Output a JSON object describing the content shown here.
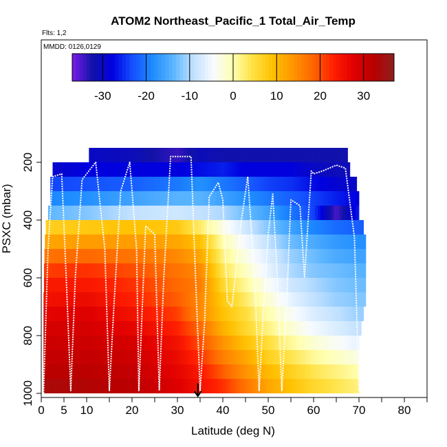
{
  "chart_data": {
    "type": "heatmap",
    "title": "ATOM2 Northeast_Pacific_1 Total_Air_Temp",
    "flights_note": "Flts: 1,2",
    "date_note": "MMDD: 0126,0129",
    "xlabel": "Latitude (deg N)",
    "ylabel": "PSXC (mbar)",
    "xlim": [
      0,
      85
    ],
    "ylim": [
      1000,
      100
    ],
    "x_ticks": [
      0,
      5,
      10,
      20,
      30,
      40,
      50,
      60,
      70,
      80
    ],
    "x_minor_ticks": [
      15,
      25,
      35,
      45,
      55,
      65,
      75,
      85
    ],
    "y_ticks": [
      200,
      400,
      600,
      800,
      1000
    ],
    "colorbar": {
      "min": -37,
      "max": 37,
      "ticks": [
        -30,
        -20,
        -10,
        0,
        10,
        20,
        30
      ],
      "palette": [
        "#7a1ce8",
        "#1212a8",
        "#0000e0",
        "#1450ff",
        "#1e8cff",
        "#5ab4ff",
        "#bfe0ff",
        "#f7fbff",
        "#ffffb0",
        "#ffe040",
        "#ffc000",
        "#ff9400",
        "#ff6400",
        "#ff1e00",
        "#e00000",
        "#b80000",
        "#8c2020"
      ]
    },
    "pressure_levels": [
      175,
      225,
      275,
      325,
      375,
      425,
      475,
      525,
      575,
      625,
      675,
      725,
      775,
      825,
      875,
      925,
      975
    ],
    "level_extent": [
      [
        10.5,
        67.5
      ],
      [
        2.5,
        68
      ],
      [
        2,
        69.5
      ],
      [
        2,
        70
      ],
      [
        1.5,
        70
      ],
      [
        1,
        71
      ],
      [
        0.8,
        71.5
      ],
      [
        0.7,
        71.5
      ],
      [
        0.6,
        71.5
      ],
      [
        0.6,
        71.5
      ],
      [
        0.5,
        71.5
      ],
      [
        0.5,
        71
      ],
      [
        0.5,
        70.5
      ],
      [
        0.5,
        70
      ],
      [
        0.5,
        70
      ],
      [
        0.5,
        70
      ],
      [
        0.5,
        70
      ]
    ],
    "temperature_profile": [
      {
        "lat": 0,
        "t": [
          -33,
          -30,
          -24,
          -19,
          -14,
          7,
          12,
          17,
          21,
          24,
          25,
          27,
          29,
          30,
          31,
          32,
          34
        ]
      },
      {
        "lat": 10,
        "t": [
          -30,
          -28,
          -23,
          -18,
          -12,
          8,
          13,
          18,
          22,
          24,
          26,
          28,
          29,
          30,
          31,
          32,
          33
        ]
      },
      {
        "lat": 20,
        "t": [
          -31,
          -28,
          -22,
          -16,
          -9,
          9,
          13,
          17,
          20,
          22,
          23,
          25,
          27,
          29,
          30,
          31,
          32
        ]
      },
      {
        "lat": 30,
        "t": [
          -34,
          -28,
          -20,
          -14,
          -8,
          8,
          12,
          15,
          17,
          18,
          19,
          21,
          23,
          25,
          26,
          27,
          28
        ]
      },
      {
        "lat": 35,
        "t": [
          -31,
          -27,
          -18,
          -14,
          -9,
          3,
          9,
          12,
          15,
          16,
          15,
          15,
          18,
          20,
          22,
          24,
          25
        ]
      },
      {
        "lat": 40,
        "t": [
          -32,
          -26,
          -20,
          -16,
          -10,
          -3,
          0,
          2,
          4,
          6,
          8,
          9,
          11,
          14,
          16,
          19,
          22
        ]
      },
      {
        "lat": 45,
        "t": [
          -32,
          -28,
          -22,
          -18,
          -13,
          -8,
          -5,
          -3,
          -1,
          1,
          3,
          5,
          6,
          9,
          12,
          14,
          17
        ]
      },
      {
        "lat": 50,
        "t": [
          -32,
          -28,
          -24,
          -20,
          -16,
          -12,
          -9,
          -7,
          -6,
          -4,
          -2,
          0,
          2,
          5,
          7,
          10,
          12
        ]
      },
      {
        "lat": 55,
        "t": [
          -32,
          -28,
          -25,
          -22,
          -20,
          -16,
          -13,
          -11,
          -10,
          -8,
          -6,
          -4,
          -2,
          1,
          4,
          7,
          9
        ]
      },
      {
        "lat": 60,
        "t": [
          -32,
          -30,
          -27,
          -24,
          -24,
          -19,
          -15,
          -13,
          -12,
          -10,
          -9,
          -7,
          -5,
          -2,
          1,
          4,
          6
        ]
      },
      {
        "lat": 65,
        "t": [
          -32,
          -31,
          -29,
          -26,
          -35,
          -21,
          -17,
          -15,
          -13,
          -12,
          -11,
          -9,
          -7,
          -4,
          -1,
          2,
          4
        ]
      },
      {
        "lat": 70,
        "t": [
          -32,
          -31,
          -30,
          -28,
          -26,
          -22,
          -18,
          -16,
          -14,
          -13,
          -12,
          -11,
          -9,
          -6,
          -3,
          0,
          2
        ]
      }
    ],
    "flight_track": [
      [
        0.5,
        1000
      ],
      [
        1.5,
        500
      ],
      [
        2.5,
        250
      ],
      [
        4.5,
        240
      ],
      [
        5.5,
        600
      ],
      [
        6.5,
        990
      ],
      [
        7.5,
        600
      ],
      [
        9,
        260
      ],
      [
        12,
        200
      ],
      [
        14,
        500
      ],
      [
        15,
        990
      ],
      [
        16,
        700
      ],
      [
        17.5,
        300
      ],
      [
        19.5,
        200
      ],
      [
        21,
        500
      ],
      [
        21.5,
        990
      ],
      [
        22,
        800
      ],
      [
        23,
        420
      ],
      [
        25,
        450
      ],
      [
        26,
        990
      ],
      [
        27,
        600
      ],
      [
        28.5,
        180
      ],
      [
        33,
        180
      ],
      [
        34,
        600
      ],
      [
        35,
        990
      ],
      [
        36,
        750
      ],
      [
        37,
        320
      ],
      [
        39,
        270
      ],
      [
        40,
        330
      ],
      [
        41,
        680
      ],
      [
        42,
        700
      ],
      [
        43,
        560
      ],
      [
        44,
        410
      ],
      [
        45.5,
        250
      ],
      [
        47,
        600
      ],
      [
        48,
        990
      ],
      [
        49,
        700
      ],
      [
        50,
        450
      ],
      [
        51,
        310
      ],
      [
        52,
        600
      ],
      [
        53,
        990
      ],
      [
        54,
        700
      ],
      [
        55,
        330
      ],
      [
        57,
        350
      ],
      [
        58,
        600
      ],
      [
        59.5,
        230
      ],
      [
        60,
        240
      ],
      [
        62,
        230
      ],
      [
        65,
        210
      ],
      [
        67,
        220
      ],
      [
        69,
        460
      ],
      [
        70,
        990
      ]
    ],
    "annotations": [
      {
        "type": "arrow",
        "lat": 34.5,
        "from_p": 965,
        "to_p": 1000
      }
    ]
  }
}
